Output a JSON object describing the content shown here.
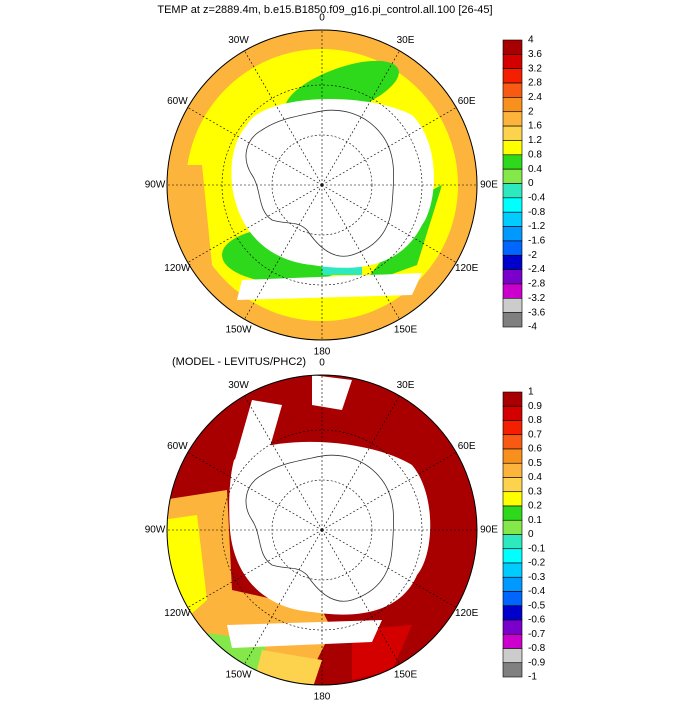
{
  "panels": [
    {
      "title": "TEMP at z=2889.4m, b.e15.B1850.f09_g16.pi_control.all.100 [26-45]",
      "lon_labels": [
        "0",
        "30E",
        "60E",
        "90E",
        "120E",
        "150E",
        "180",
        "150W",
        "120W",
        "90W",
        "60W",
        "30W"
      ],
      "colorbar": {
        "labels": [
          4,
          3.6,
          3.2,
          2.8,
          2.4,
          2,
          1.6,
          1.2,
          0.8,
          0.4,
          0,
          -0.4,
          -0.8,
          -1.2,
          -1.6,
          -2,
          -2.4,
          -2.8,
          -3.2,
          -3.6,
          -4
        ],
        "colors": [
          "#a80000",
          "#d40000",
          "#f41e00",
          "#f85a14",
          "#f8901e",
          "#fcb43c",
          "#fdd24c",
          "#ffff00",
          "#2ed81a",
          "#84e84a",
          "#2ee8c0",
          "#00ffff",
          "#00ccff",
          "#0099ff",
          "#0066ff",
          "#0000cc",
          "#7a00cc",
          "#cc00cc",
          "#cccccc",
          "#808080"
        ]
      }
    },
    {
      "title": "(MODEL - LEVITUS/PHC2)",
      "lon_labels": [
        "0",
        "30E",
        "60E",
        "90E",
        "120E",
        "150E",
        "180",
        "150W",
        "120W",
        "90W",
        "60W",
        "30W"
      ],
      "colorbar": {
        "labels": [
          1,
          0.9,
          0.8,
          0.7,
          0.6,
          0.5,
          0.4,
          0.3,
          0.2,
          0.1,
          0,
          -0.1,
          -0.2,
          -0.3,
          -0.4,
          -0.5,
          -0.6,
          -0.7,
          -0.8,
          -0.9,
          -1
        ],
        "colors": [
          "#a80000",
          "#d40000",
          "#f41e00",
          "#f85a14",
          "#f8901e",
          "#fcb43c",
          "#fdd24c",
          "#ffff00",
          "#2ed81a",
          "#84e84a",
          "#2ee8c0",
          "#00ffff",
          "#00ccff",
          "#0099ff",
          "#0066ff",
          "#0000cc",
          "#7a00cc",
          "#cc00cc",
          "#cccccc",
          "#808080"
        ]
      }
    }
  ]
}
